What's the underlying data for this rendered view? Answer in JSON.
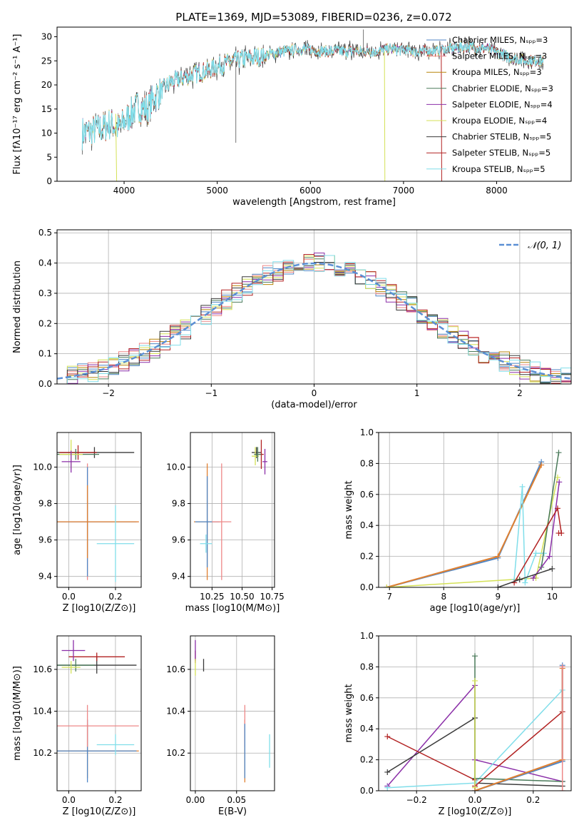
{
  "colors": {
    "chabrier_miles": "#4f86c6",
    "salpeter_miles": "#ee8888",
    "kroupa_miles": "#b8860b",
    "chabrier_elodie": "#4a7a5a",
    "salpeter_elodie": "#8b2fa8",
    "kroupa_elodie": "#d4e157",
    "chabrier_stelib": "#3a3a3a",
    "salpeter_stelib": "#b22222",
    "kroupa_stelib": "#80deea",
    "orange": "#e08030",
    "normal": "#5b8fd4"
  },
  "chart_data": [
    {
      "id": "spectrum",
      "type": "line",
      "title": "PLATE=1369, MJD=53089, FIBERID=0236, z=0.072",
      "xlabel": "wavelength [Angstrom, rest frame]",
      "ylabel": "Flux [fλ10⁻¹⁷ erg cm⁻² s⁻¹ A⁻¹]",
      "xlim": [
        3280,
        8800
      ],
      "ylim": [
        0,
        32
      ],
      "xticks": [
        "4000",
        "5000",
        "6000",
        "7000",
        "8000"
      ],
      "xtick_values": [
        4000,
        5000,
        6000,
        7000,
        8000
      ],
      "yticks": [
        "0",
        "5",
        "10",
        "15",
        "20",
        "25",
        "30"
      ],
      "ytick_values": [
        0,
        5,
        10,
        15,
        20,
        25,
        30
      ],
      "legend": "top-right",
      "legend_entries": [
        "Chabrier MILES, N_SSP=3",
        "Salpeter MILES, N_SSP=3",
        "Kroupa MILES, N_SSP=3",
        "Chabrier ELODIE, N_SSP=3",
        "Salpeter ELODIE, N_SSP=4",
        "Kroupa ELODIE, N_SSP=4",
        "Chabrier STELIB, N_SSP=5",
        "Salpeter STELIB, N_SSP=5",
        "Kroupa STELIB, N_SSP=5"
      ],
      "continuum": {
        "x": [
          3550,
          3650,
          3750,
          3850,
          3950,
          4050,
          4150,
          4250,
          4350,
          4500,
          4700,
          4900,
          5100,
          5300,
          5500,
          5700,
          5900,
          6100,
          6300,
          6500,
          6700,
          6900,
          7100,
          7300,
          7500,
          7700,
          7900,
          8100,
          8300,
          8500
        ],
        "y": [
          10,
          10.5,
          11,
          12,
          11,
          13.5,
          15.5,
          15,
          18,
          20.5,
          22,
          23,
          24.5,
          25.5,
          26,
          27,
          27.5,
          27,
          27,
          27,
          27,
          27.5,
          27,
          27,
          27.5,
          28,
          27.5,
          26,
          25,
          25
        ]
      }
    },
    {
      "id": "residuals",
      "type": "line",
      "xlabel": "(data-model)/error",
      "ylabel": "Normed distribution",
      "xlim": [
        -2.5,
        2.5
      ],
      "ylim": [
        0,
        0.51
      ],
      "xticks": [
        "−2",
        "−1",
        "0",
        "1",
        "2"
      ],
      "xtick_values": [
        -2,
        -1,
        0,
        1,
        2
      ],
      "yticks": [
        "0.0",
        "0.1",
        "0.2",
        "0.3",
        "0.4",
        "0.5"
      ],
      "ytick_values": [
        0,
        0.1,
        0.2,
        0.3,
        0.4,
        0.5
      ],
      "legend_entry": "𝒩(0, 1)",
      "grid": true
    },
    {
      "id": "age_vs_Z",
      "type": "scatter",
      "xlabel": "Z [log10(Z/Z⊙)]",
      "ylabel": "age [log10(age/yr)]",
      "xlim": [
        -0.05,
        0.31
      ],
      "ylim": [
        9.34,
        10.19
      ],
      "xticks": [
        "0.0",
        "0.2"
      ],
      "xtick_values": [
        0,
        0.2
      ],
      "yticks": [
        "9.4",
        "9.6",
        "9.8",
        "10.0"
      ],
      "ytick_values": [
        9.4,
        9.6,
        9.8,
        10.0
      ],
      "grid": true,
      "points": [
        {
          "x": 0.08,
          "y": 9.7,
          "xerr": 0.22,
          "yerr": 0.32,
          "c": "salpeter_miles"
        },
        {
          "x": 0.08,
          "y": 9.7,
          "xerr": 0.21,
          "yerr": 0.3,
          "c": "chabrier_miles"
        },
        {
          "x": 0.08,
          "y": 9.7,
          "xerr": 0.22,
          "yerr": 0.2,
          "c": "orange"
        },
        {
          "x": 0.2,
          "y": 9.58,
          "xerr": 0.08,
          "yerr": 0.21,
          "c": "kroupa_stelib"
        },
        {
          "x": 0.11,
          "y": 10.08,
          "xerr": 0.17,
          "yerr": 0.03,
          "c": "chabrier_stelib"
        },
        {
          "x": 0.04,
          "y": 10.08,
          "xerr": 0.08,
          "yerr": 0.04,
          "c": "salpeter_stelib"
        },
        {
          "x": 0.03,
          "y": 10.07,
          "xerr": 0.1,
          "yerr": 0.03,
          "c": "chabrier_elodie"
        },
        {
          "x": 0.01,
          "y": 10.07,
          "xerr": 0.05,
          "yerr": 0.08,
          "c": "kroupa_elodie"
        },
        {
          "x": 0.01,
          "y": 10.03,
          "xerr": 0.04,
          "yerr": 0.06,
          "c": "salpeter_elodie"
        }
      ]
    },
    {
      "id": "age_vs_mass",
      "type": "scatter",
      "xlabel": "mass [log10(M/M⊙)]",
      "xlim": [
        10.07,
        10.77
      ],
      "ylim": [
        9.34,
        10.19
      ],
      "xticks": [
        "10.25",
        "10.50",
        "10.75"
      ],
      "xtick_values": [
        10.25,
        10.5,
        10.75
      ],
      "yticks": [
        "9.4",
        "9.6",
        "9.8",
        "10.0"
      ],
      "ytick_values": [
        9.4,
        9.6,
        9.8,
        10.0
      ],
      "grid": true,
      "points": [
        {
          "x": 10.21,
          "y": 9.7,
          "xerr": 0.11,
          "yerr": 0.32,
          "c": "orange"
        },
        {
          "x": 10.21,
          "y": 9.7,
          "xerr": 0.1,
          "yerr": 0.25,
          "c": "chabrier_miles"
        },
        {
          "x": 10.33,
          "y": 9.7,
          "xerr": 0.08,
          "yerr": 0.32,
          "c": "salpeter_miles"
        },
        {
          "x": 10.2,
          "y": 9.58,
          "xerr": 0.05,
          "yerr": 0.05,
          "c": "kroupa_stelib"
        },
        {
          "x": 10.62,
          "y": 10.08,
          "xerr": 0.04,
          "yerr": 0.03,
          "c": "chabrier_stelib"
        },
        {
          "x": 10.66,
          "y": 10.07,
          "xerr": 0.02,
          "yerr": 0.08,
          "c": "salpeter_stelib"
        },
        {
          "x": 10.69,
          "y": 10.03,
          "xerr": 0.02,
          "yerr": 0.07,
          "c": "salpeter_elodie"
        },
        {
          "x": 10.61,
          "y": 10.06,
          "xerr": 0.03,
          "yerr": 0.05,
          "c": "kroupa_elodie"
        },
        {
          "x": 10.63,
          "y": 10.07,
          "xerr": 0.03,
          "yerr": 0.04,
          "c": "chabrier_elodie"
        }
      ]
    },
    {
      "id": "mass_weight_vs_age",
      "type": "line",
      "xlabel": "age [log10(age/yr)]",
      "ylabel": "mass weight",
      "xlim": [
        6.8,
        10.35
      ],
      "ylim": [
        0,
        1
      ],
      "xticks": [
        "7",
        "8",
        "9",
        "10"
      ],
      "xtick_values": [
        7,
        8,
        9,
        10
      ],
      "yticks": [
        "0.0",
        "0.2",
        "0.4",
        "0.6",
        "0.8",
        "1.0"
      ],
      "ytick_values": [
        0,
        0.2,
        0.4,
        0.6,
        0.8,
        1.0
      ],
      "grid": true,
      "series": [
        {
          "c": "chabrier_miles",
          "w": 2,
          "x": [
            6.95,
            9.0,
            9.8
          ],
          "y": [
            0.0,
            0.19,
            0.81
          ]
        },
        {
          "c": "orange",
          "w": 2,
          "x": [
            6.95,
            9.0,
            9.8
          ],
          "y": [
            0.0,
            0.2,
            0.79
          ]
        },
        {
          "c": "kroupa_elodie",
          "w": 1.5,
          "x": [
            6.95,
            9.7,
            10.1
          ],
          "y": [
            0.0,
            0.06,
            0.71
          ]
        },
        {
          "c": "kroupa_stelib",
          "w": 1.5,
          "x": [
            9.3,
            9.45,
            9.5,
            9.7,
            9.85
          ],
          "y": [
            0.05,
            0.65,
            0.03,
            0.22,
            0.22
          ]
        },
        {
          "c": "chabrier_elodie",
          "w": 1.5,
          "x": [
            9.8,
            10.12
          ],
          "y": [
            0.13,
            0.87
          ]
        },
        {
          "c": "salpeter_elodie",
          "w": 1.5,
          "x": [
            9.65,
            9.95,
            10.13
          ],
          "y": [
            0.06,
            0.2,
            0.68
          ]
        },
        {
          "c": "salpeter_stelib",
          "w": 1.5,
          "x": [
            9.3,
            10.1,
            10.17,
            10.12
          ],
          "y": [
            0.03,
            0.51,
            0.35,
            0.35
          ]
        },
        {
          "c": "chabrier_stelib",
          "w": 1.5,
          "x": [
            9.0,
            9.4,
            10.0
          ],
          "y": [
            0.0,
            0.05,
            0.12
          ]
        }
      ]
    },
    {
      "id": "mass_vs_Z",
      "type": "scatter",
      "xlabel": "Z [log10(Z/Z⊙)]",
      "ylabel": "mass [log10(M/M⊙)]",
      "xlim": [
        -0.05,
        0.31
      ],
      "ylim": [
        10.02,
        10.76
      ],
      "xticks": [
        "0.0",
        "0.2"
      ],
      "xtick_values": [
        0,
        0.2
      ],
      "yticks": [
        "10.2",
        "10.4",
        "10.6"
      ],
      "ytick_values": [
        10.2,
        10.4,
        10.6
      ],
      "grid": true,
      "points": [
        {
          "x": 0.08,
          "y": 10.21,
          "xerr": 0.22,
          "yerr": 0.13,
          "c": "orange"
        },
        {
          "x": 0.08,
          "y": 10.21,
          "xerr": 0.21,
          "yerr": 0.15,
          "c": "chabrier_miles"
        },
        {
          "x": 0.08,
          "y": 10.33,
          "xerr": 0.22,
          "yerr": 0.1,
          "c": "salpeter_miles"
        },
        {
          "x": 0.2,
          "y": 10.24,
          "xerr": 0.08,
          "yerr": 0.05,
          "c": "kroupa_stelib"
        },
        {
          "x": 0.12,
          "y": 10.62,
          "xerr": 0.17,
          "yerr": 0.04,
          "c": "chabrier_stelib"
        },
        {
          "x": 0.12,
          "y": 10.66,
          "xerr": 0.12,
          "yerr": 0.02,
          "c": "salpeter_stelib"
        },
        {
          "x": 0.03,
          "y": 10.62,
          "xerr": 0.08,
          "yerr": 0.03,
          "c": "chabrier_elodie"
        },
        {
          "x": 0.02,
          "y": 10.69,
          "xerr": 0.05,
          "yerr": 0.05,
          "c": "salpeter_elodie"
        },
        {
          "x": 0.01,
          "y": 10.61,
          "xerr": 0.04,
          "yerr": 0.03,
          "c": "kroupa_elodie"
        }
      ]
    },
    {
      "id": "mass_vs_ebv",
      "type": "scatter",
      "xlabel": "E(B-V)",
      "xlim": [
        -0.006,
        0.096
      ],
      "ylim": [
        10.02,
        10.76
      ],
      "xticks": [
        "0.00",
        "0.05"
      ],
      "xtick_values": [
        0,
        0.05
      ],
      "yticks": [
        "10.2",
        "10.4",
        "10.6"
      ],
      "ytick_values": [
        10.2,
        10.4,
        10.6
      ],
      "grid": true,
      "points": [
        {
          "x": 0.06,
          "y": 10.21,
          "xerr": 0,
          "yerr": 0.15,
          "c": "orange"
        },
        {
          "x": 0.06,
          "y": 10.33,
          "xerr": 0,
          "yerr": 0.1,
          "c": "salpeter_miles"
        },
        {
          "x": 0.06,
          "y": 10.21,
          "xerr": 0,
          "yerr": 0.13,
          "c": "chabrier_miles"
        },
        {
          "x": 0.09,
          "y": 10.21,
          "xerr": 0,
          "yerr": 0.08,
          "c": "kroupa_stelib"
        },
        {
          "x": 0.01,
          "y": 10.62,
          "xerr": 0,
          "yerr": 0.03,
          "c": "chabrier_stelib"
        },
        {
          "x": 0.0,
          "y": 10.66,
          "xerr": 0,
          "yerr": 0.03,
          "c": "salpeter_stelib"
        },
        {
          "x": 0.0,
          "y": 10.69,
          "xerr": 0,
          "yerr": 0.05,
          "c": "salpeter_elodie"
        },
        {
          "x": 0.0,
          "y": 10.61,
          "xerr": 0,
          "yerr": 0.04,
          "c": "kroupa_elodie"
        }
      ]
    },
    {
      "id": "mass_weight_vs_Z",
      "type": "line",
      "xlabel": "Z [log10(Z/Z⊙)]",
      "ylabel": "mass weight",
      "xlim": [
        -0.33,
        0.33
      ],
      "ylim": [
        0,
        1
      ],
      "xticks": [
        "−0.2",
        "0.0",
        "0.2"
      ],
      "xtick_values": [
        -0.2,
        0,
        0.2
      ],
      "yticks": [
        "0.0",
        "0.2",
        "0.4",
        "0.6",
        "0.8",
        "1.0"
      ],
      "ytick_values": [
        0,
        0.2,
        0.4,
        0.6,
        0.8,
        1.0
      ],
      "grid": true,
      "series": [
        {
          "c": "salpeter_elodie",
          "w": 1.5,
          "x": [
            -0.3,
            0.0,
            0.0,
            0.3
          ],
          "y": [
            0.03,
            0.68,
            0.2,
            0.06
          ]
        },
        {
          "c": "chabrier_stelib",
          "w": 1.5,
          "x": [
            -0.3,
            0.0,
            0.0,
            0.3
          ],
          "y": [
            0.12,
            0.47,
            0.05,
            0.03
          ]
        },
        {
          "c": "salpeter_stelib",
          "w": 1.5,
          "x": [
            -0.3,
            0.0,
            0.0,
            0.3
          ],
          "y": [
            0.35,
            0.07,
            0.03,
            0.51
          ]
        },
        {
          "c": "kroupa_stelib",
          "w": 1.5,
          "x": [
            -0.3,
            0.0,
            0.3,
            0.3
          ],
          "y": [
            0.02,
            0.05,
            0.65,
            0.2
          ]
        },
        {
          "c": "chabrier_elodie",
          "w": 1.5,
          "x": [
            0.0,
            0.0,
            0.3
          ],
          "y": [
            0.87,
            0.08,
            0.06
          ]
        },
        {
          "c": "kroupa_elodie",
          "w": 1.5,
          "x": [
            0.0,
            0.0
          ],
          "y": [
            0.71,
            0.02
          ]
        },
        {
          "c": "chabrier_miles",
          "w": 2,
          "x": [
            0.0,
            0.3,
            0.3
          ],
          "y": [
            0.0,
            0.19,
            0.81
          ]
        },
        {
          "c": "orange",
          "w": 2,
          "x": [
            0.0,
            0.3,
            0.3
          ],
          "y": [
            0.0,
            0.2,
            0.79
          ]
        },
        {
          "c": "salpeter_miles",
          "w": 1.5,
          "x": [
            0.3,
            0.3
          ],
          "y": [
            0.0,
            0.8
          ]
        }
      ]
    }
  ]
}
